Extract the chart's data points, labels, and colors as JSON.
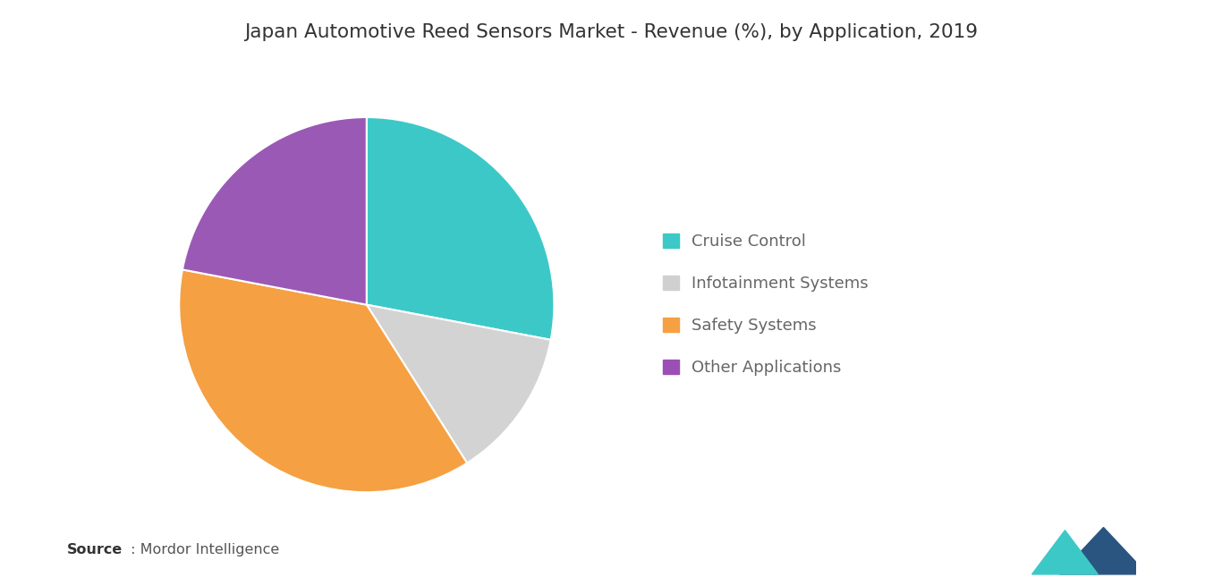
{
  "title": "Japan Automotive Reed Sensors Market - Revenue (%), by Application, 2019",
  "labels": [
    "Cruise Control",
    "Infotainment Systems",
    "Safety Systems",
    "Other Applications"
  ],
  "values": [
    28,
    13,
    37,
    22
  ],
  "colors": [
    "#3DC8C8",
    "#D3D3D3",
    "#F5A042",
    "#9B59B6"
  ],
  "legend_colors": [
    "#3DC8C8",
    "#D0D0D0",
    "#F5A042",
    "#9B4FB5"
  ],
  "startangle": 90,
  "background_color": "#FFFFFF",
  "title_fontsize": 15.5,
  "legend_fontsize": 13,
  "source_text": "Source",
  "source_detail": " : Mordor Intelligence"
}
